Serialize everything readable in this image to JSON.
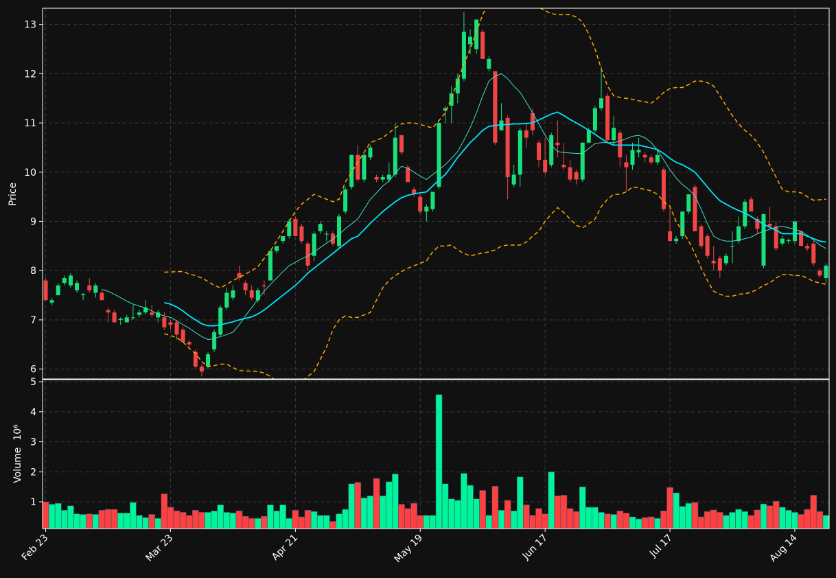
{
  "chart_data": [
    {
      "type": "candlestick",
      "ylabel": "Price",
      "ylim": [
        5.8,
        13.33
      ],
      "yticks": [
        6,
        7,
        8,
        9,
        10,
        11,
        12,
        13
      ],
      "grid": true,
      "up_color": "#19e07a",
      "down_color": "#f04646",
      "open": [
        7.8,
        7.35,
        7.5,
        7.75,
        7.7,
        7.6,
        7.5,
        7.7,
        7.55,
        7.55,
        7.2,
        7.15,
        7.0,
        6.95,
        7.05,
        7.1,
        7.15,
        7.15,
        7.05,
        7.05,
        6.95,
        6.95,
        6.8,
        6.55,
        6.35,
        6.05,
        6.05,
        6.4,
        6.7,
        7.25,
        7.45,
        7.95,
        7.75,
        7.6,
        7.4,
        7.7,
        7.8,
        8.4,
        8.6,
        8.7,
        9.05,
        8.9,
        8.55,
        8.3,
        8.8,
        8.75,
        8.75,
        8.5,
        9.2,
        9.7,
        10.35,
        9.85,
        10.3,
        9.9,
        9.85,
        9.85,
        9.95,
        10.75,
        10.1,
        9.65,
        9.5,
        9.2,
        9.25,
        9.7,
        11.25,
        11.35,
        11.6,
        11.9,
        12.6,
        12.5,
        12.85,
        12.1,
        12.05,
        10.85,
        11.1,
        9.75,
        9.95,
        10.85,
        11.2,
        10.6,
        10.25,
        10.15,
        10.6,
        10.15,
        10.1,
        10.0,
        9.85,
        10.6,
        10.85,
        11.3,
        11.55,
        10.65,
        10.8,
        10.2,
        10.15,
        10.4,
        10.35,
        10.3,
        10.2,
        10.05,
        8.8,
        8.6,
        8.7,
        9.2,
        9.7,
        8.9,
        8.7,
        8.2,
        8.25,
        8.15,
        8.5,
        8.6,
        8.9,
        9.45,
        9.05,
        8.1,
        8.95,
        8.9,
        8.55,
        8.6,
        8.6,
        8.8,
        8.5,
        8.55,
        8.0,
        7.85
      ],
      "high": [
        7.85,
        7.45,
        7.75,
        7.9,
        7.95,
        7.8,
        7.55,
        7.85,
        7.75,
        7.6,
        7.25,
        7.2,
        7.05,
        7.1,
        7.3,
        7.2,
        7.4,
        7.3,
        7.2,
        7.15,
        7.0,
        7.0,
        6.85,
        6.6,
        6.4,
        6.1,
        6.35,
        6.8,
        7.3,
        7.65,
        7.7,
        8.1,
        7.8,
        7.7,
        7.65,
        7.8,
        8.4,
        8.5,
        8.7,
        9.05,
        9.1,
        8.95,
        8.6,
        8.8,
        9.0,
        8.8,
        8.8,
        9.15,
        9.7,
        10.35,
        10.55,
        10.4,
        10.55,
        9.95,
        9.95,
        10.2,
        11.0,
        10.75,
        10.15,
        9.7,
        9.55,
        9.35,
        9.6,
        11.05,
        11.35,
        11.75,
        12.0,
        13.25,
        12.9,
        13.1,
        12.9,
        12.35,
        12.05,
        11.4,
        11.15,
        10.15,
        10.9,
        11.0,
        11.3,
        10.65,
        10.7,
        10.8,
        11.05,
        10.6,
        10.25,
        10.05,
        10.6,
        10.9,
        11.35,
        12.15,
        11.6,
        11.15,
        10.85,
        10.35,
        10.6,
        10.7,
        10.4,
        10.35,
        10.45,
        10.1,
        9.35,
        8.7,
        9.2,
        9.55,
        9.75,
        8.95,
        8.75,
        8.5,
        8.3,
        8.35,
        8.8,
        9.1,
        9.45,
        9.5,
        9.1,
        9.15,
        9.3,
        9.0,
        8.7,
        8.65,
        9.0,
        8.8,
        8.55,
        8.6,
        8.05,
        8.15
      ],
      "low": [
        7.4,
        7.3,
        7.5,
        7.7,
        7.65,
        7.55,
        7.4,
        7.55,
        7.45,
        7.4,
        6.95,
        6.95,
        6.9,
        6.95,
        7.0,
        7.05,
        7.1,
        7.05,
        6.95,
        6.8,
        6.8,
        6.6,
        6.55,
        6.45,
        6.0,
        5.85,
        6.0,
        6.35,
        6.65,
        7.2,
        7.4,
        7.8,
        7.5,
        7.4,
        7.35,
        7.5,
        7.8,
        8.35,
        8.55,
        8.65,
        8.7,
        8.55,
        8.0,
        8.2,
        8.75,
        8.6,
        8.5,
        8.45,
        9.15,
        9.65,
        9.8,
        9.8,
        10.25,
        9.8,
        9.8,
        9.8,
        9.9,
        10.35,
        9.8,
        9.5,
        9.15,
        9.0,
        9.2,
        9.65,
        11.0,
        11.0,
        11.4,
        11.85,
        12.4,
        12.4,
        12.3,
        12.05,
        10.55,
        10.85,
        9.45,
        9.7,
        9.7,
        10.5,
        10.75,
        10.1,
        9.95,
        10.1,
        10.3,
        10.05,
        9.8,
        9.75,
        9.8,
        10.6,
        10.8,
        11.25,
        10.6,
        10.55,
        10.1,
        9.6,
        10.05,
        10.3,
        10.2,
        10.15,
        10.15,
        9.2,
        8.6,
        8.55,
        8.65,
        9.15,
        8.8,
        8.45,
        8.25,
        8.0,
        7.85,
        8.1,
        8.15,
        8.55,
        8.85,
        9.2,
        8.75,
        8.05,
        8.85,
        8.4,
        8.5,
        8.55,
        8.55,
        8.5,
        8.4,
        8.1,
        7.85,
        7.75
      ],
      "close": [
        7.4,
        7.4,
        7.7,
        7.85,
        7.9,
        7.75,
        7.52,
        7.6,
        7.7,
        7.4,
        7.15,
        6.95,
        7.02,
        7.05,
        7.05,
        7.15,
        7.25,
        7.1,
        7.15,
        6.85,
        6.9,
        6.7,
        6.55,
        6.5,
        6.05,
        5.95,
        6.3,
        6.75,
        7.25,
        7.55,
        7.6,
        7.85,
        7.6,
        7.45,
        7.6,
        7.68,
        8.4,
        8.5,
        8.7,
        9.0,
        8.7,
        8.6,
        8.1,
        8.75,
        8.95,
        8.75,
        8.55,
        9.1,
        9.65,
        10.35,
        9.85,
        10.35,
        10.5,
        9.85,
        9.9,
        9.95,
        10.7,
        10.4,
        9.8,
        9.55,
        9.2,
        9.3,
        9.6,
        11.0,
        11.3,
        11.6,
        11.9,
        12.85,
        12.75,
        13.1,
        12.3,
        12.3,
        10.6,
        11.05,
        9.9,
        9.95,
        10.85,
        10.7,
        10.85,
        10.25,
        10.0,
        10.75,
        10.55,
        10.1,
        9.85,
        9.85,
        10.6,
        10.85,
        11.3,
        11.5,
        10.65,
        10.9,
        10.3,
        10.1,
        10.45,
        10.45,
        10.3,
        10.2,
        10.35,
        9.25,
        8.6,
        8.65,
        9.2,
        9.55,
        8.8,
        8.5,
        8.3,
        8.15,
        8.0,
        8.3,
        8.5,
        8.9,
        9.4,
        9.2,
        8.85,
        9.15,
        8.9,
        8.45,
        8.65,
        8.62,
        9.0,
        8.5,
        8.45,
        8.15,
        7.9,
        8.1
      ],
      "lines": [
        {
          "color": "#40e0d0",
          "width": 1,
          "dash": false,
          "values": [
            null,
            null,
            null,
            null,
            null,
            null,
            null,
            null,
            null,
            7.62,
            7.58,
            7.52,
            7.45,
            7.38,
            7.32,
            7.28,
            7.24,
            7.18,
            7.12,
            7.08,
            7.05,
            6.98,
            6.9,
            6.83,
            6.74,
            6.66,
            6.6,
            6.62,
            6.66,
            6.7,
            6.75,
            6.9,
            7.08,
            7.25,
            7.42,
            7.58,
            7.72,
            7.85,
            7.98,
            8.1,
            8.17,
            8.24,
            8.3,
            8.38,
            8.47,
            8.56,
            8.64,
            8.74,
            8.85,
            8.95,
            9.05,
            9.25,
            9.45,
            9.58,
            9.72,
            9.82,
            9.98,
            10.12,
            10.08,
            10.0,
            9.92,
            9.85,
            9.95,
            10.05,
            10.15,
            10.28,
            10.42,
            10.65,
            10.9,
            11.2,
            11.55,
            11.85,
            11.95,
            12.0,
            11.9,
            11.75,
            11.62,
            11.42,
            11.2,
            10.98,
            10.75,
            10.55,
            10.42,
            10.4,
            10.39,
            10.38,
            10.38,
            10.48,
            10.58,
            10.6,
            10.6,
            10.6,
            10.63,
            10.68,
            10.73,
            10.75,
            10.7,
            10.6,
            10.45,
            10.25,
            10.05,
            9.88,
            9.75,
            9.65,
            9.52,
            9.25,
            8.95,
            8.7,
            8.63,
            8.6,
            8.6,
            8.62,
            8.65,
            8.68,
            8.75,
            8.8,
            8.84,
            8.88,
            8.9,
            8.87,
            8.84,
            8.8,
            8.72,
            8.62,
            8.52,
            8.45
          ]
        },
        {
          "color": "#00e5ff",
          "width": 1.8,
          "dash": false,
          "values": [
            null,
            null,
            null,
            null,
            null,
            null,
            null,
            null,
            null,
            null,
            null,
            null,
            null,
            null,
            null,
            null,
            null,
            null,
            null,
            7.35,
            7.32,
            7.26,
            7.18,
            7.08,
            7.0,
            6.92,
            6.88,
            6.88,
            6.9,
            6.93,
            6.96,
            7.0,
            7.03,
            7.06,
            7.12,
            7.2,
            7.3,
            7.4,
            7.5,
            7.6,
            7.7,
            7.82,
            7.95,
            8.05,
            8.15,
            8.25,
            8.35,
            8.45,
            8.55,
            8.65,
            8.7,
            8.83,
            8.96,
            9.08,
            9.2,
            9.3,
            9.4,
            9.48,
            9.53,
            9.56,
            9.58,
            9.6,
            9.72,
            9.84,
            9.95,
            10.12,
            10.3,
            10.45,
            10.6,
            10.72,
            10.85,
            10.93,
            10.95,
            10.96,
            10.97,
            10.98,
            10.98,
            10.99,
            11.0,
            11.06,
            11.12,
            11.18,
            11.22,
            11.15,
            11.07,
            11.0,
            10.93,
            10.85,
            10.77,
            10.68,
            10.6,
            10.55,
            10.55,
            10.55,
            10.55,
            10.55,
            10.52,
            10.49,
            10.46,
            10.38,
            10.28,
            10.2,
            10.15,
            10.08,
            10.0,
            9.85,
            9.7,
            9.55,
            9.42,
            9.35,
            9.28,
            9.22,
            9.17,
            9.1,
            9.02,
            8.94,
            8.88,
            8.82,
            8.75,
            8.75,
            8.75,
            8.75,
            8.7,
            8.65,
            8.6,
            8.58
          ]
        },
        {
          "color": "#ffa500",
          "width": 1.5,
          "dash": true,
          "values": [
            null,
            null,
            null,
            null,
            null,
            null,
            null,
            null,
            null,
            null,
            null,
            null,
            null,
            null,
            null,
            null,
            null,
            null,
            null,
            7.97,
            7.97,
            7.98,
            7.98,
            7.93,
            7.9,
            7.85,
            7.78,
            7.7,
            7.65,
            7.72,
            7.8,
            7.86,
            7.93,
            8.0,
            8.08,
            8.25,
            8.4,
            8.6,
            8.8,
            9.0,
            9.2,
            9.35,
            9.45,
            9.55,
            9.5,
            9.45,
            9.4,
            9.45,
            9.8,
            10.0,
            10.2,
            10.4,
            10.6,
            10.65,
            10.7,
            10.8,
            10.9,
            10.98,
            11.0,
            11.0,
            10.97,
            10.93,
            10.9,
            11.05,
            11.2,
            11.5,
            11.85,
            12.2,
            12.5,
            12.85,
            13.2,
            13.45,
            13.6,
            13.7,
            13.72,
            13.7,
            13.65,
            13.55,
            13.45,
            13.35,
            13.28,
            13.22,
            13.2,
            13.2,
            13.2,
            13.15,
            13.05,
            12.8,
            12.5,
            12.1,
            11.75,
            11.55,
            11.52,
            11.5,
            11.48,
            11.45,
            11.43,
            11.4,
            11.5,
            11.62,
            11.7,
            11.72,
            11.72,
            11.78,
            11.85,
            11.85,
            11.82,
            11.75,
            11.55,
            11.35,
            11.15,
            10.98,
            10.85,
            10.75,
            10.6,
            10.4,
            10.15,
            9.9,
            9.65,
            9.6,
            9.6,
            9.58,
            9.5,
            9.43,
            9.44,
            9.45
          ]
        },
        {
          "color": "#ffa500",
          "width": 1.5,
          "dash": true,
          "values": [
            null,
            null,
            null,
            null,
            null,
            null,
            null,
            null,
            null,
            null,
            null,
            null,
            null,
            null,
            null,
            null,
            null,
            null,
            null,
            6.72,
            6.68,
            6.64,
            6.55,
            6.42,
            6.32,
            6.15,
            6.05,
            6.07,
            6.1,
            6.1,
            6.03,
            5.97,
            5.96,
            5.96,
            5.95,
            5.92,
            5.85,
            5.75,
            5.68,
            5.65,
            5.68,
            5.75,
            5.85,
            5.95,
            6.2,
            6.45,
            6.8,
            7.0,
            7.08,
            7.05,
            7.05,
            7.1,
            7.15,
            7.4,
            7.65,
            7.8,
            7.9,
            7.98,
            8.05,
            8.1,
            8.15,
            8.2,
            8.38,
            8.5,
            8.5,
            8.52,
            8.42,
            8.35,
            8.3,
            8.33,
            8.36,
            8.38,
            8.42,
            8.5,
            8.52,
            8.52,
            8.52,
            8.58,
            8.7,
            8.8,
            9.0,
            9.15,
            9.28,
            9.18,
            9.05,
            8.92,
            8.87,
            8.95,
            9.05,
            9.3,
            9.45,
            9.55,
            9.55,
            9.6,
            9.7,
            9.68,
            9.65,
            9.62,
            9.55,
            9.4,
            9.3,
            9.0,
            8.8,
            8.6,
            8.35,
            8.05,
            7.8,
            7.58,
            7.52,
            7.48,
            7.48,
            7.52,
            7.53,
            7.56,
            7.62,
            7.7,
            7.75,
            7.85,
            7.92,
            7.92,
            7.9,
            7.9,
            7.85,
            7.78,
            7.75,
            7.72
          ]
        }
      ]
    },
    {
      "type": "bar",
      "ylabel": "Volume",
      "exponent_label": "10⁶",
      "ylim": [
        0.11,
        5.07
      ],
      "yticks": [
        1,
        2,
        3,
        4,
        5
      ],
      "grid": true,
      "xlim": [
        -0.5,
        125.5
      ],
      "xticks": [
        {
          "value": 0,
          "label": "Feb 23"
        },
        {
          "value": 20,
          "label": "Mar 23"
        },
        {
          "value": 40,
          "label": "Apr 21"
        },
        {
          "value": 60,
          "label": "May 19"
        },
        {
          "value": 80,
          "label": "Jun 17"
        },
        {
          "value": 100,
          "label": "Jul 17"
        },
        {
          "value": 120,
          "label": "Aug 14"
        }
      ],
      "values": [
        1.0,
        0.92,
        0.95,
        0.72,
        0.87,
        0.6,
        0.58,
        0.6,
        0.58,
        0.72,
        0.75,
        0.75,
        0.63,
        0.63,
        0.98,
        0.55,
        0.48,
        0.58,
        0.45,
        1.27,
        0.82,
        0.7,
        0.65,
        0.55,
        0.72,
        0.65,
        0.65,
        0.7,
        0.9,
        0.65,
        0.63,
        0.7,
        0.52,
        0.45,
        0.45,
        0.52,
        0.9,
        0.7,
        0.9,
        0.45,
        0.72,
        0.5,
        0.72,
        0.68,
        0.55,
        0.55,
        0.35,
        0.6,
        0.75,
        1.6,
        1.65,
        1.13,
        1.2,
        1.78,
        1.2,
        1.67,
        1.93,
        0.92,
        0.78,
        0.95,
        0.55,
        0.55,
        0.55,
        4.57,
        1.6,
        1.1,
        1.05,
        1.95,
        1.55,
        1.1,
        1.38,
        0.55,
        1.52,
        0.72,
        1.05,
        0.7,
        1.83,
        0.9,
        0.55,
        0.78,
        0.6,
        2.0,
        1.2,
        1.22,
        0.78,
        0.68,
        1.5,
        0.82,
        0.82,
        0.65,
        0.6,
        0.58,
        0.7,
        0.63,
        0.5,
        0.43,
        0.48,
        0.5,
        0.45,
        0.7,
        1.48,
        1.3,
        0.85,
        0.95,
        0.98,
        0.5,
        0.68,
        0.73,
        0.65,
        0.55,
        0.65,
        0.75,
        0.68,
        0.55,
        0.73,
        0.93,
        0.87,
        1.02,
        0.82,
        0.72,
        0.65,
        0.58,
        0.75,
        1.22,
        0.68,
        0.55
      ],
      "up_color": "#00f59b",
      "down_color": "#ff4040"
    }
  ]
}
